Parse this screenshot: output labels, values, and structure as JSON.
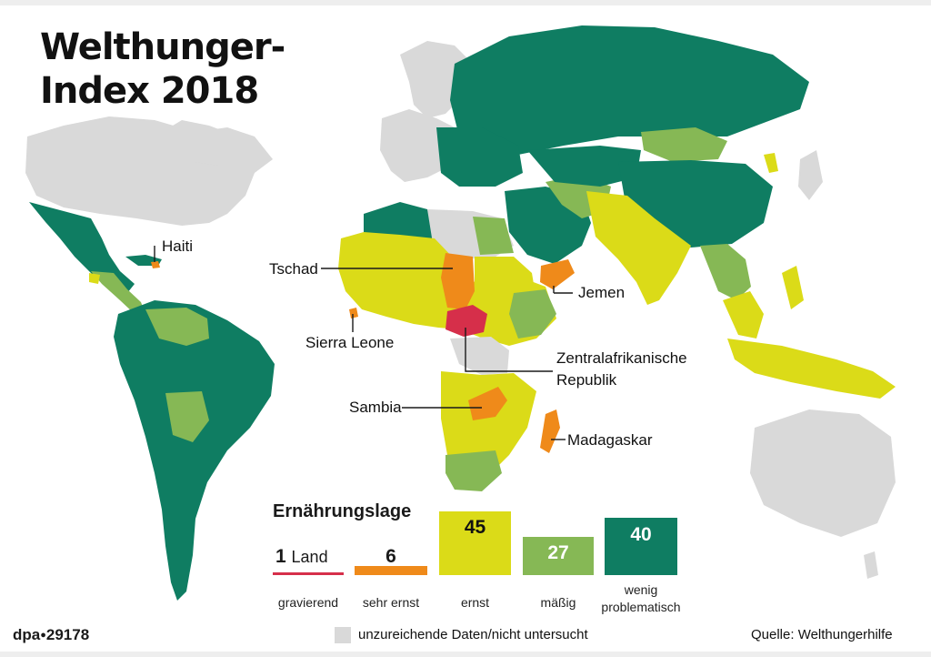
{
  "title": {
    "line1": "Welthunger-",
    "line2": "Index 2018"
  },
  "colors": {
    "gravierend": "#d62f4a",
    "sehr_ernst": "#ef8a1a",
    "ernst": "#dbdb18",
    "maessig": "#86b855",
    "wenig": "#0f7d62",
    "keine_daten": "#d9d9d9",
    "frame": "#eeeeee"
  },
  "map_labels": {
    "haiti": "Haiti",
    "tschad": "Tschad",
    "jemen": "Jemen",
    "sierra_leone": "Sierra Leone",
    "zentralafrika_1": "Zentralafrikanische",
    "zentralafrika_2": "Republik",
    "sambia": "Sambia",
    "madagaskar": "Madagaskar"
  },
  "legend": {
    "title": "Ernährungslage",
    "categories": [
      {
        "count": "1",
        "unit": "Land",
        "label": "gravierend"
      },
      {
        "count": "6",
        "label": "sehr ernst"
      },
      {
        "count": "45",
        "label": "ernst"
      },
      {
        "count": "27",
        "label": "mäßig"
      },
      {
        "count": "40",
        "label_1": "wenig",
        "label_2": "problematisch"
      }
    ],
    "no_data": "unzureichende Daten/nicht untersucht"
  },
  "footer": {
    "agency": "dpa",
    "id": "29178",
    "source": "Quelle: Welthungerhilfe"
  }
}
